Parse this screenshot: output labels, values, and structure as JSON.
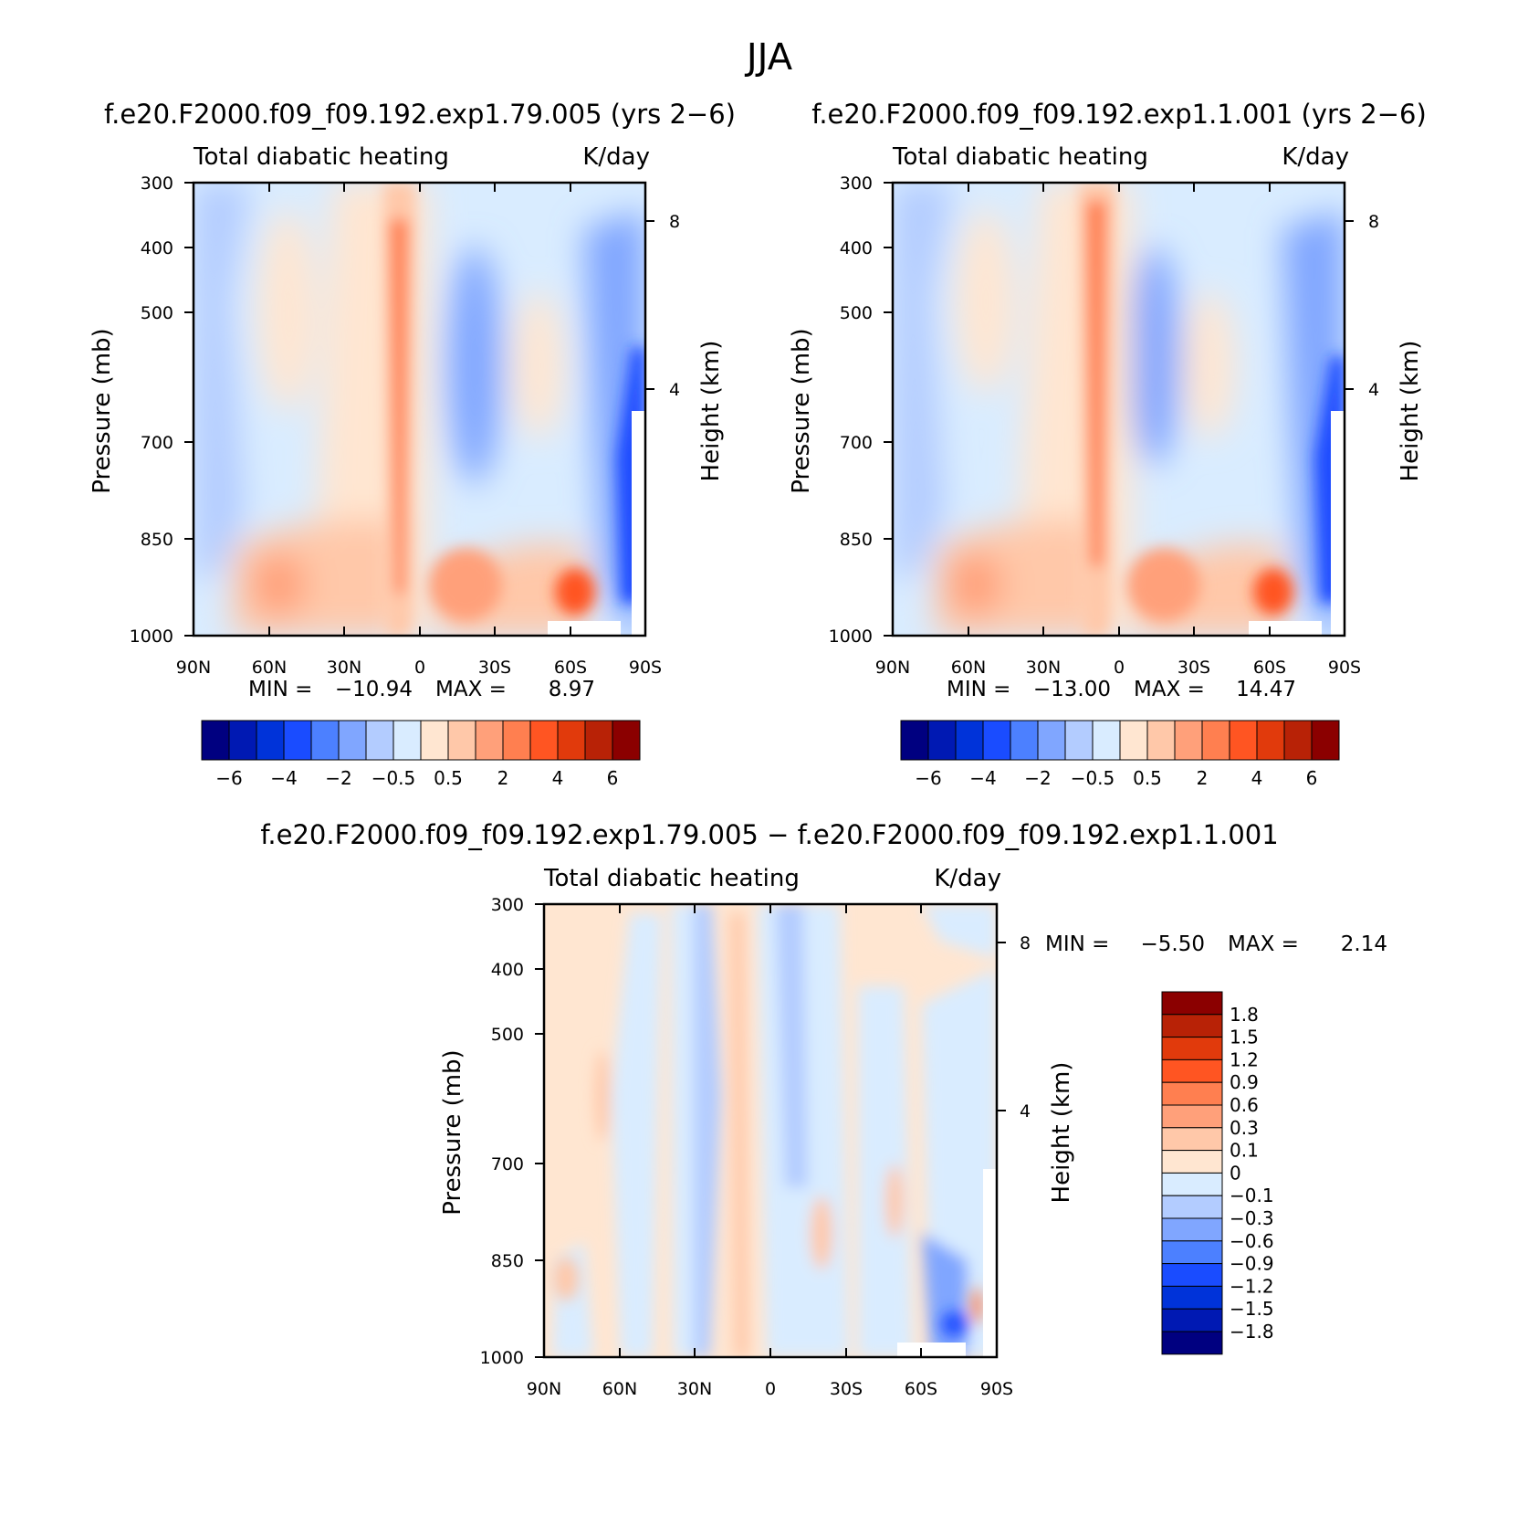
{
  "figure": {
    "title": "JJA",
    "diff_title": "f.e20.F2000.f09_f09.192.exp1.79.005 − f.e20.F2000.f09_f09.192.exp1.1.001"
  },
  "axes": {
    "ylabel": "Pressure (mb)",
    "y2label": "Height (km)",
    "yticks": [
      "300",
      "400",
      "500",
      "700",
      "850",
      "1000"
    ],
    "y2ticks": [
      "8",
      "4"
    ],
    "xticks": [
      "90N",
      "60N",
      "30N",
      "0",
      "30S",
      "60S",
      "90S"
    ]
  },
  "chart_data": [
    {
      "type": "heatmap",
      "title": "f.e20.F2000.f09_f09.192.exp1.79.005 (yrs 2−6)",
      "left_label": "Total diabatic heating",
      "right_label": "K/day",
      "xlabel": "",
      "ylabel": "Pressure (mb)",
      "y2label": "Height (km)",
      "x": [
        "90N",
        "60N",
        "30N",
        "0",
        "30S",
        "60S",
        "90S"
      ],
      "ylim": [
        1000,
        300
      ],
      "min_label": "MIN =",
      "min": "−10.94",
      "max_label": "MAX =",
      "max": "8.97",
      "colorbar": [
        "−6",
        "−4",
        "−2",
        "−0.5",
        "0.5",
        "2",
        "4",
        "6"
      ],
      "levels": [
        -6,
        -5,
        -4,
        -3,
        -2,
        -1,
        -0.5,
        0,
        0.5,
        1,
        2,
        3,
        4,
        5,
        6
      ]
    },
    {
      "type": "heatmap",
      "title": "f.e20.F2000.f09_f09.192.exp1.1.001 (yrs 2−6)",
      "left_label": "Total diabatic heating",
      "right_label": "K/day",
      "xlabel": "",
      "ylabel": "Pressure (mb)",
      "y2label": "Height (km)",
      "x": [
        "90N",
        "60N",
        "30N",
        "0",
        "30S",
        "60S",
        "90S"
      ],
      "ylim": [
        1000,
        300
      ],
      "min_label": "MIN =",
      "min": "−13.00",
      "max_label": "MAX =",
      "max": "14.47",
      "colorbar": [
        "−6",
        "−4",
        "−2",
        "−0.5",
        "0.5",
        "2",
        "4",
        "6"
      ],
      "levels": [
        -6,
        -5,
        -4,
        -3,
        -2,
        -1,
        -0.5,
        0,
        0.5,
        1,
        2,
        3,
        4,
        5,
        6
      ]
    },
    {
      "type": "heatmap",
      "title": "f.e20.F2000.f09_f09.192.exp1.79.005 − f.e20.F2000.f09_f09.192.exp1.1.001",
      "left_label": "Total diabatic heating",
      "right_label": "K/day",
      "xlabel": "",
      "ylabel": "Pressure (mb)",
      "y2label": "Height (km)",
      "x": [
        "90N",
        "60N",
        "30N",
        "0",
        "30S",
        "60S",
        "90S"
      ],
      "ylim": [
        1000,
        300
      ],
      "min_label": "MIN =",
      "min": "−5.50",
      "max_label": "MAX =",
      "max": "2.14",
      "colorbar": [
        "1.8",
        "1.5",
        "1.2",
        "0.9",
        "0.6",
        "0.3",
        "0.1",
        "0",
        "−0.1",
        "−0.3",
        "−0.6",
        "−0.9",
        "−1.2",
        "−1.5",
        "−1.8"
      ],
      "levels": [
        -1.8,
        -1.5,
        -1.2,
        -0.9,
        -0.6,
        -0.3,
        -0.1,
        0,
        0.1,
        0.3,
        0.6,
        0.9,
        1.2,
        1.5,
        1.8
      ]
    }
  ],
  "colors": {
    "palette": [
      "#000080",
      "#0019b3",
      "#0033d9",
      "#1a4cff",
      "#4c80ff",
      "#80a6ff",
      "#b3ccff",
      "#d9ecff",
      "#ffe6d1",
      "#ffc8a9",
      "#ffa07a",
      "#ff7f50",
      "#ff5522",
      "#e13a0c",
      "#b82206",
      "#8b0000"
    ]
  }
}
